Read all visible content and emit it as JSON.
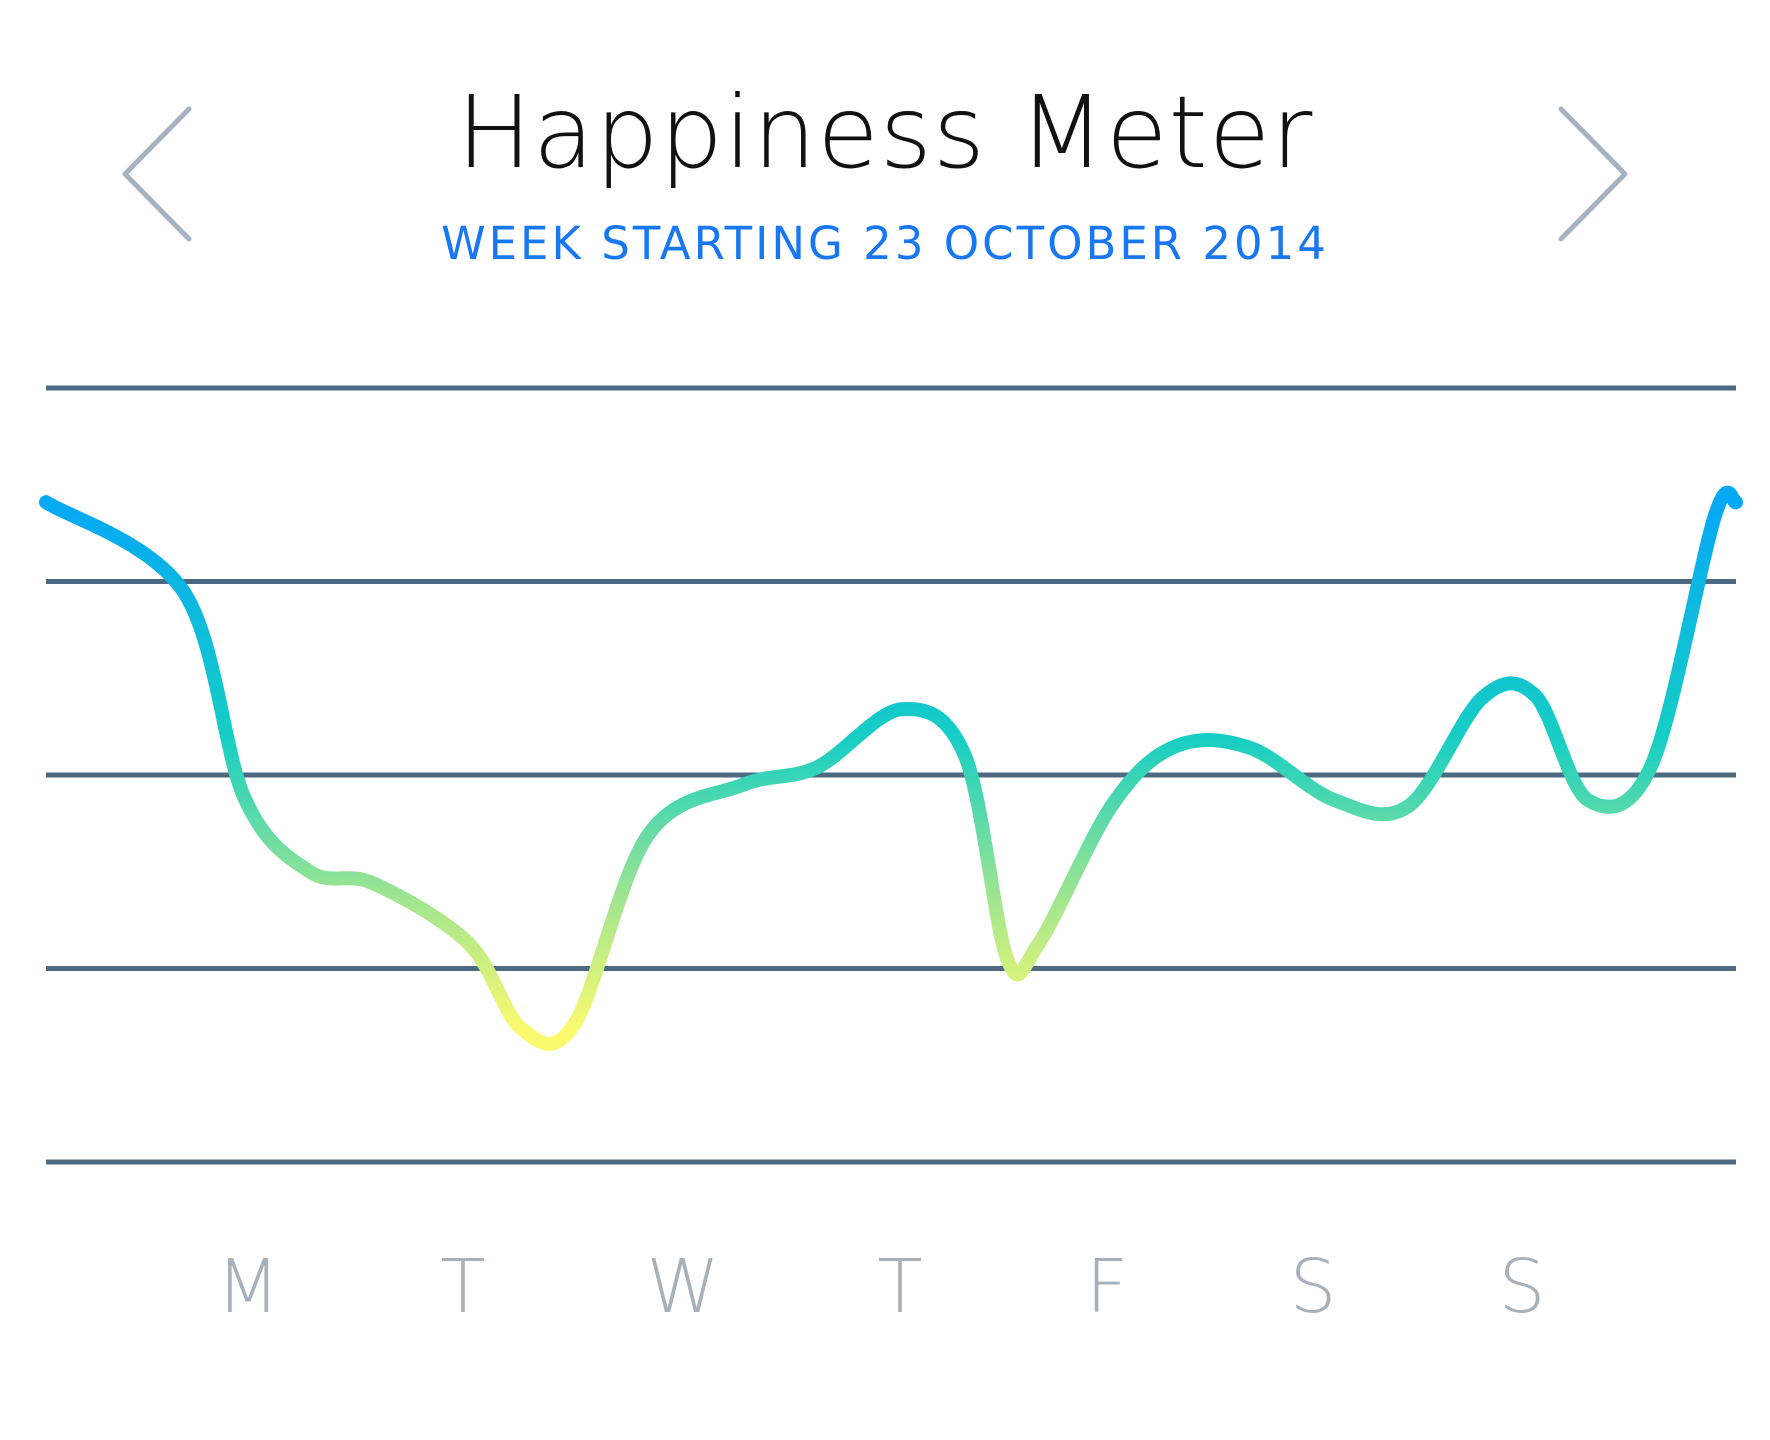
{
  "header": {
    "title": "Happiness Meter",
    "subtitle": "WEEK STARTING 23 OCTOBER 2014"
  },
  "navigation": {
    "prev_icon": "chevron-left-icon",
    "next_icon": "chevron-right-icon"
  },
  "colors": {
    "accent": "#1877f2",
    "grid": "#4d6a82",
    "day_label": "#a7b1b9",
    "arrow": "#a5b2c0",
    "gradient_top": "#05a8f5",
    "gradient_mid": "#16cec4",
    "gradient_low": "#9fe590",
    "gradient_bottom": "#fbfa6f"
  },
  "chart_data": {
    "type": "line",
    "title": "Happiness Meter",
    "subtitle": "WEEK STARTING 23 OCTOBER 2014",
    "categories": [
      "M",
      "T",
      "W",
      "T",
      "F",
      "S",
      "S"
    ],
    "ylim": [
      0,
      4
    ],
    "grid": true,
    "gridlines": [
      0,
      1,
      2,
      3,
      4
    ],
    "x_range": [
      0,
      8
    ],
    "series": [
      {
        "points": [
          [
            0.0,
            3.41
          ],
          [
            0.65,
            2.95
          ],
          [
            0.94,
            1.88
          ],
          [
            1.25,
            1.5
          ],
          [
            1.55,
            1.44
          ],
          [
            2.0,
            1.13
          ],
          [
            2.25,
            0.69
          ],
          [
            2.5,
            0.71
          ],
          [
            2.85,
            1.69
          ],
          [
            3.3,
            1.95
          ],
          [
            3.65,
            2.04
          ],
          [
            4.05,
            2.34
          ],
          [
            4.35,
            2.1
          ],
          [
            4.55,
            1.05
          ],
          [
            4.7,
            1.13
          ],
          [
            5.05,
            1.85
          ],
          [
            5.35,
            2.15
          ],
          [
            5.7,
            2.14
          ],
          [
            6.1,
            1.87
          ],
          [
            6.45,
            1.84
          ],
          [
            6.8,
            2.4
          ],
          [
            7.05,
            2.41
          ],
          [
            7.3,
            1.87
          ],
          [
            7.6,
            2.05
          ],
          [
            7.9,
            3.34
          ],
          [
            8.0,
            3.41
          ]
        ]
      }
    ]
  }
}
